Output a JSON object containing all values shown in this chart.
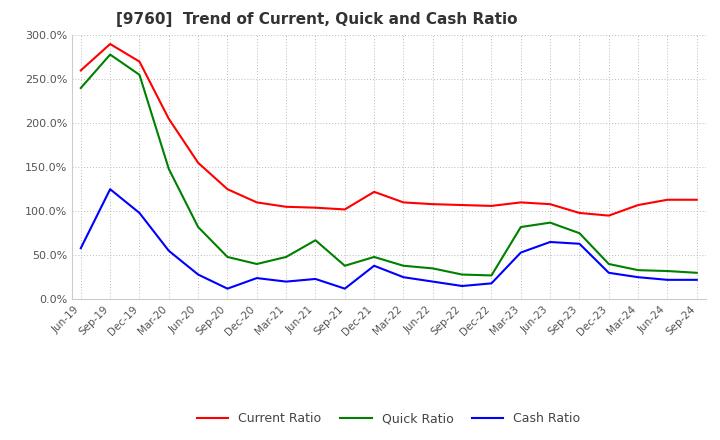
{
  "title": "[9760]  Trend of Current, Quick and Cash Ratio",
  "xlabels": [
    "Jun-19",
    "Sep-19",
    "Dec-19",
    "Mar-20",
    "Jun-20",
    "Sep-20",
    "Dec-20",
    "Mar-21",
    "Jun-21",
    "Sep-21",
    "Dec-21",
    "Mar-22",
    "Jun-22",
    "Sep-22",
    "Dec-22",
    "Mar-23",
    "Jun-23",
    "Sep-23",
    "Dec-23",
    "Mar-24",
    "Jun-24",
    "Sep-24"
  ],
  "current_ratio": [
    260,
    290,
    270,
    205,
    155,
    125,
    110,
    105,
    104,
    102,
    122,
    110,
    108,
    107,
    106,
    110,
    108,
    98,
    95,
    107,
    113,
    113
  ],
  "quick_ratio": [
    240,
    278,
    255,
    148,
    82,
    48,
    40,
    48,
    67,
    38,
    48,
    38,
    35,
    28,
    27,
    82,
    87,
    75,
    40,
    33,
    32,
    30
  ],
  "cash_ratio": [
    58,
    125,
    98,
    55,
    28,
    12,
    24,
    20,
    23,
    12,
    38,
    25,
    20,
    15,
    18,
    53,
    65,
    63,
    30,
    25,
    22,
    22
  ],
  "ylim": [
    0,
    300
  ],
  "yticks": [
    0,
    50,
    100,
    150,
    200,
    250,
    300
  ],
  "current_color": "#ff0000",
  "quick_color": "#008000",
  "cash_color": "#0000ff",
  "background_color": "#ffffff",
  "grid_color": "#bbbbbb"
}
